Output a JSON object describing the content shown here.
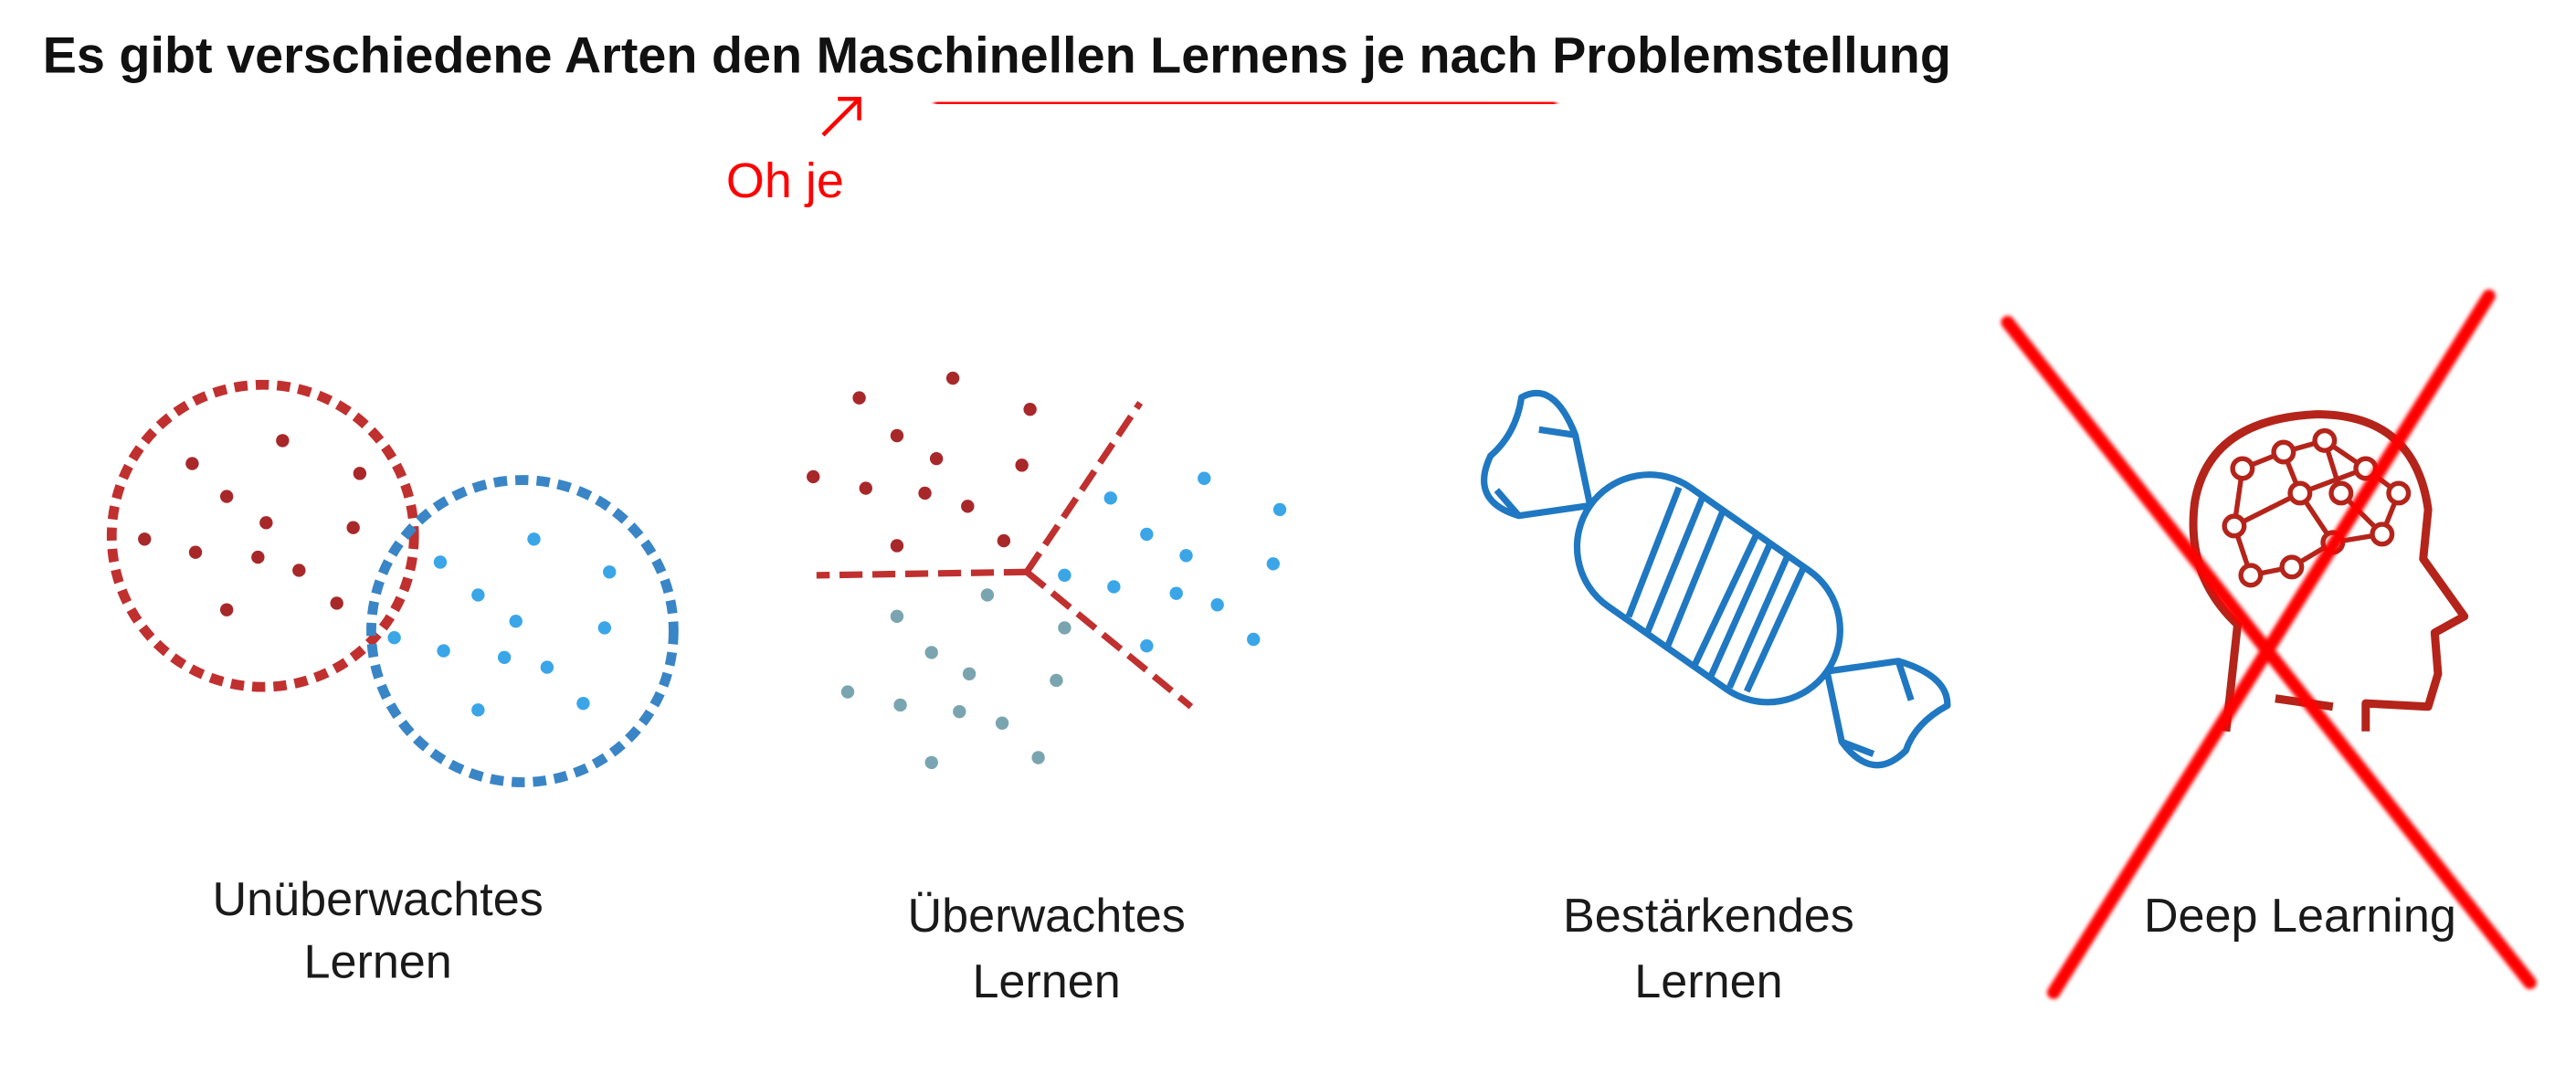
{
  "header": {
    "title_parts": [
      "Es gibt verschiedene Arten den ",
      "Maschinellen Lernens",
      " je nach Problemstellung"
    ]
  },
  "annotation": "Oh je",
  "items": [
    {
      "lines": [
        "Unüberwachtes",
        "Lernen"
      ]
    },
    {
      "lines": [
        "Überwachtes",
        "Lernen"
      ]
    },
    {
      "lines": [
        "Bestärkendes",
        "Lernen"
      ]
    },
    {
      "lines": [
        "Deep Learning"
      ]
    }
  ]
}
